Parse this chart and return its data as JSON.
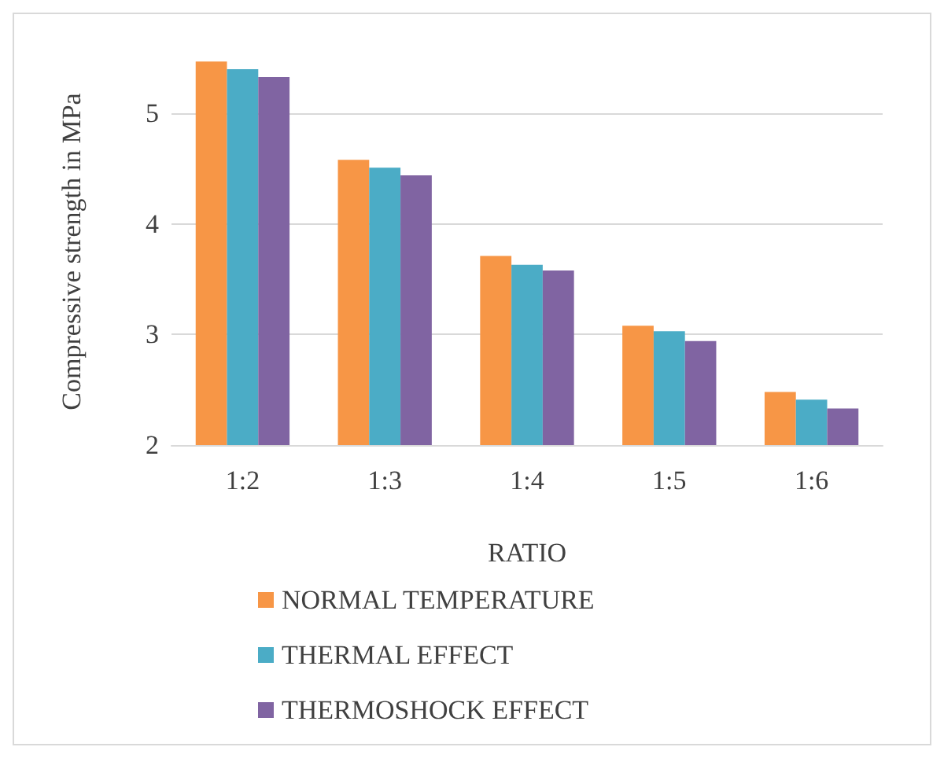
{
  "chart_data": {
    "type": "bar",
    "xlabel": "RATIO",
    "ylabel": "Compressive strength in MPa",
    "categories": [
      "1:2",
      "1:3",
      "1:4",
      "1:5",
      "1:6"
    ],
    "series": [
      {
        "name": "NORMAL TEMPERATURE",
        "color": "#f79646",
        "values": [
          5.47,
          4.58,
          3.71,
          3.08,
          2.48
        ]
      },
      {
        "name": "THERMAL EFFECT",
        "color": "#4bacc6",
        "values": [
          5.4,
          4.51,
          3.63,
          3.03,
          2.41
        ]
      },
      {
        "name": "THERMOSHOCK EFFECT",
        "color": "#8064a2",
        "values": [
          5.33,
          4.44,
          3.58,
          2.94,
          2.33
        ]
      }
    ],
    "ylim": [
      2,
      5.5
    ],
    "yticks": [
      2,
      3,
      4,
      5
    ],
    "grid": "y",
    "legend": "bottom"
  }
}
